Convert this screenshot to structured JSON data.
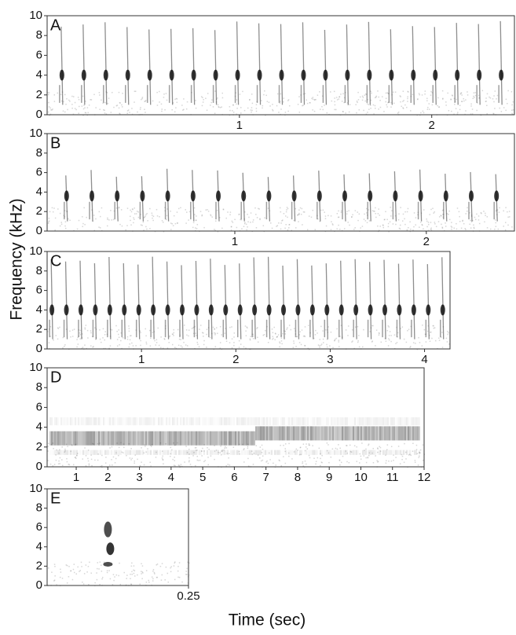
{
  "ylabel": "Frequency (kHz)",
  "xlabel": "Time (sec)",
  "chart_data": [
    {
      "type": "spectrogram",
      "label": "A",
      "xlim": [
        0,
        2.43
      ],
      "ylim": [
        0,
        10
      ],
      "xticks": [
        1,
        2
      ],
      "yticks": [
        0,
        2,
        4,
        6,
        8,
        10
      ]
    },
    {
      "type": "spectrogram",
      "label": "B",
      "xlim": [
        0.02,
        2.46
      ],
      "ylim": [
        0,
        10
      ],
      "xticks": [
        1,
        2
      ],
      "yticks": [
        0,
        2,
        4,
        6,
        8,
        10
      ]
    },
    {
      "type": "spectrogram",
      "label": "C",
      "xlim": [
        0,
        4.27
      ],
      "ylim": [
        0,
        10
      ],
      "xticks": [
        1,
        2,
        3,
        4
      ],
      "yticks": [
        0,
        2,
        4,
        6,
        8,
        10
      ]
    },
    {
      "type": "spectrogram",
      "label": "D",
      "xlim": [
        0.08,
        12
      ],
      "ylim": [
        0,
        10
      ],
      "xticks": [
        1,
        2,
        3,
        4,
        5,
        6,
        7,
        8,
        9,
        10,
        11,
        12
      ],
      "yticks": [
        0,
        2,
        4,
        6,
        8,
        10
      ]
    },
    {
      "type": "spectrogram",
      "label": "E",
      "xlim": [
        0,
        0.25
      ],
      "ylim": [
        0,
        10
      ],
      "xticks": [
        0.25
      ],
      "yticks": [
        0,
        2,
        4,
        6,
        8,
        10
      ]
    }
  ]
}
